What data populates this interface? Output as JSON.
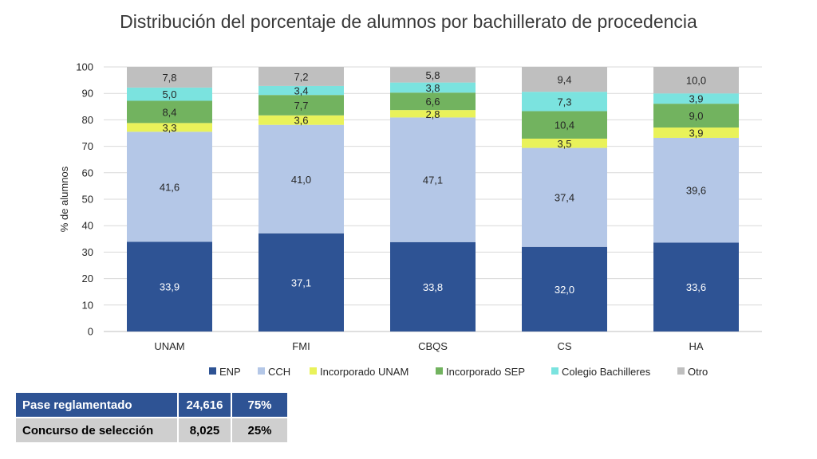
{
  "chart_data": {
    "type": "bar",
    "stacked": true,
    "title": "Distribución del porcentaje de alumnos por bachillerato de procedencia",
    "xlabel": "",
    "ylabel": "% de alumnos",
    "ylim": [
      0,
      100
    ],
    "yticks": [
      "0",
      "10",
      "20",
      "30",
      "40",
      "50",
      "60",
      "70",
      "80",
      "90",
      "100"
    ],
    "grid": true,
    "legend_position": "bottom",
    "categories": [
      "UNAM",
      "FMI",
      "CBQS",
      "CS",
      "HA"
    ],
    "series": [
      {
        "name": "ENP",
        "color": "#2e5394",
        "label_color": "#ffffff",
        "values": [
          33.9,
          37.1,
          33.8,
          32.0,
          33.6
        ],
        "labels": [
          "33,9",
          "37,1",
          "33,8",
          "32,0",
          "33,6"
        ]
      },
      {
        "name": "CCH",
        "color": "#b4c7e7",
        "label_color": "#262626",
        "values": [
          41.6,
          41.0,
          47.1,
          37.4,
          39.6
        ],
        "labels": [
          "41,6",
          "41,0",
          "47,1",
          "37,4",
          "39,6"
        ]
      },
      {
        "name": "Incorporado UNAM",
        "color": "#e9f25a",
        "label_color": "#262626",
        "values": [
          3.3,
          3.6,
          2.8,
          3.5,
          3.9
        ],
        "labels": [
          "3,3",
          "3,6",
          "2,8",
          "3,5",
          "3,9"
        ]
      },
      {
        "name": "Incorporado SEP",
        "color": "#72b35f",
        "label_color": "#262626",
        "values": [
          8.4,
          7.7,
          6.6,
          10.4,
          9.0
        ],
        "labels": [
          "8,4",
          "7,7",
          "6,6",
          "10,4",
          "9,0"
        ]
      },
      {
        "name": "Colegio Bachilleres",
        "color": "#7be3df",
        "label_color": "#262626",
        "values": [
          5.0,
          3.4,
          3.8,
          7.3,
          3.9
        ],
        "labels": [
          "5,0",
          "3,4",
          "3,8",
          "7,3",
          "3,9"
        ]
      },
      {
        "name": "Otro",
        "color": "#bfbfbf",
        "label_color": "#262626",
        "values": [
          7.8,
          7.2,
          5.8,
          9.4,
          10.0
        ],
        "labels": [
          "7,8",
          "7,2",
          "5,8",
          "9,4",
          "10,0"
        ]
      }
    ]
  },
  "table": {
    "rows": [
      [
        "Pase reglamentado",
        "24,616",
        "75%"
      ],
      [
        "Concurso de selección",
        "8,025",
        "25%"
      ]
    ]
  }
}
